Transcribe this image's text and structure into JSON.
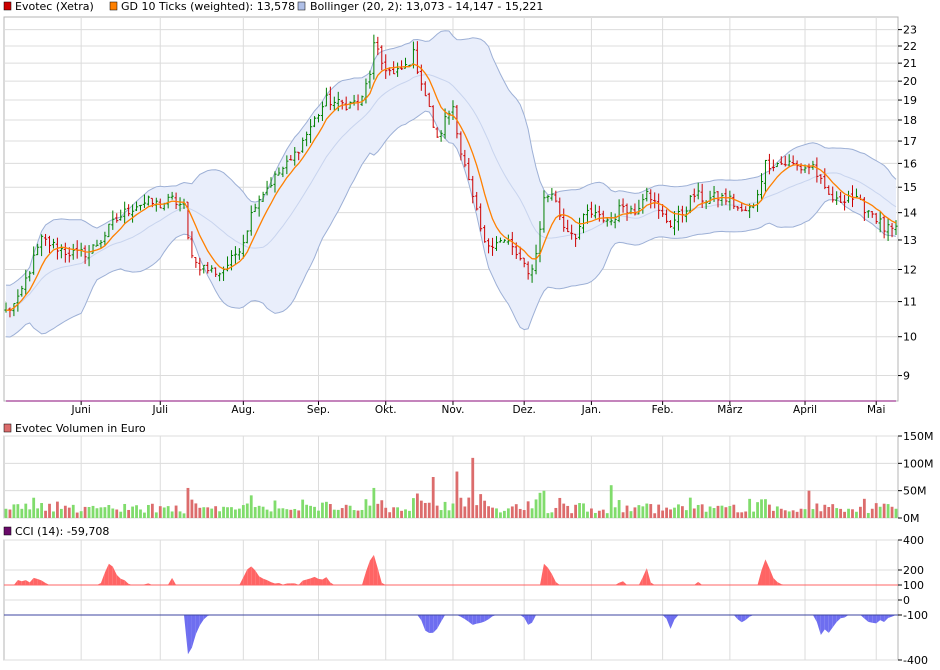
{
  "colors": {
    "price_up": "#008000",
    "price_down": "#cc0000",
    "moving_average": "#ff8000",
    "bollinger_line": "#9db0d6",
    "bollinger_fill": "#e9eefb",
    "bollinger_mid": "#c8d4ee",
    "volume_up": "#80dc6c",
    "volume_down": "#dc6c6c",
    "cci_line": "#8a0a7a",
    "cci_upper_line": "#ff6464",
    "cci_lower_line": "#3c46a0",
    "cci_fill_high": "#ff6464",
    "cci_fill_low": "#6e6ef0",
    "grid": "#dcdcdc",
    "axis": "#000000",
    "minus100_label": "#3c46c8",
    "plus100_label": "#e03232"
  },
  "legend": {
    "price": "Evotec (Xetra)",
    "ma": "GD 10 Ticks (weighted): 13,578",
    "bollinger": "Bollinger (20, 2): 13,073 - 14,147 - 15,221",
    "volume": "Evotec Volumen in Euro",
    "cci": "CCI (14): -59,708"
  },
  "chart_data": [
    {
      "type": "ohlc",
      "title": "",
      "series_names": [
        "Evotec (Xetra)",
        "GD 10 Ticks (weighted)",
        "Bollinger (20, 2)"
      ],
      "x_tick_labels": [
        "Juni",
        "Juli",
        "Aug.",
        "Sep.",
        "Okt.",
        "Nov.",
        "Dez.",
        "Jan.",
        "Feb.",
        "März",
        "April",
        "Mai"
      ],
      "y_tick_labels": [
        "9",
        "10",
        "11",
        "12",
        "13",
        "14",
        "15",
        "16",
        "17",
        "18",
        "19",
        "20",
        "21",
        "22",
        "23"
      ],
      "yscale": "log",
      "ylim": [
        8.4,
        23.8
      ],
      "grid": true,
      "legend_position": "top-left",
      "anchors": [
        [
          0,
          10.7
        ],
        [
          3,
          11.0
        ],
        [
          6,
          12.0
        ],
        [
          9,
          13.0
        ],
        [
          12,
          12.8
        ],
        [
          15,
          12.6
        ],
        [
          18,
          12.5
        ],
        [
          21,
          12.6
        ],
        [
          24,
          13.0
        ],
        [
          27,
          13.6
        ],
        [
          30,
          14.0
        ],
        [
          33,
          14.3
        ],
        [
          36,
          14.4
        ],
        [
          39,
          14.3
        ],
        [
          42,
          14.5
        ],
        [
          45,
          14.2
        ],
        [
          46,
          13.0
        ],
        [
          48,
          12.2
        ],
        [
          51,
          12.0
        ],
        [
          54,
          11.9
        ],
        [
          57,
          12.3
        ],
        [
          60,
          13.0
        ],
        [
          63,
          14.4
        ],
        [
          66,
          15.0
        ],
        [
          69,
          15.6
        ],
        [
          72,
          16.1
        ],
        [
          75,
          17.0
        ],
        [
          78,
          18.0
        ],
        [
          81,
          19.0
        ],
        [
          84,
          18.8
        ],
        [
          87,
          18.8
        ],
        [
          90,
          19.0
        ],
        [
          92,
          20.5
        ],
        [
          93,
          22.0
        ],
        [
          95,
          21.0
        ],
        [
          98,
          20.3
        ],
        [
          101,
          20.8
        ],
        [
          103,
          21.5
        ],
        [
          105,
          20.0
        ],
        [
          107,
          18.5
        ],
        [
          109,
          17.0
        ],
        [
          111,
          18.0
        ],
        [
          113,
          18.7
        ],
        [
          115,
          16.5
        ],
        [
          118,
          14.5
        ],
        [
          121,
          12.8
        ],
        [
          124,
          13.0
        ],
        [
          127,
          12.9
        ],
        [
          130,
          12.3
        ],
        [
          132,
          11.8
        ],
        [
          134,
          12.5
        ],
        [
          136,
          14.5
        ],
        [
          138,
          14.8
        ],
        [
          141,
          13.5
        ],
        [
          144,
          13.2
        ],
        [
          147,
          14.0
        ],
        [
          150,
          13.8
        ],
        [
          153,
          13.7
        ],
        [
          156,
          14.3
        ],
        [
          159,
          14.0
        ],
        [
          162,
          15.0
        ],
        [
          165,
          14.0
        ],
        [
          168,
          13.6
        ],
        [
          171,
          14.0
        ],
        [
          174,
          14.7
        ],
        [
          177,
          14.5
        ],
        [
          180,
          14.6
        ],
        [
          183,
          14.5
        ],
        [
          186,
          14.0
        ],
        [
          189,
          14.2
        ],
        [
          192,
          16.0
        ],
        [
          195,
          16.0
        ],
        [
          198,
          16.0
        ],
        [
          201,
          15.8
        ],
        [
          204,
          15.9
        ],
        [
          207,
          14.8
        ],
        [
          210,
          14.4
        ],
        [
          213,
          14.7
        ],
        [
          216,
          14.3
        ],
        [
          219,
          14.0
        ],
        [
          222,
          13.4
        ],
        [
          225,
          13.3
        ]
      ],
      "ma_last": 13.578,
      "bollinger_last": {
        "lower": 13.073,
        "middle": 14.147,
        "upper": 15.221
      }
    },
    {
      "type": "bar",
      "title": "Evotec Volumen in Euro",
      "y_tick_labels": [
        "0M",
        "50M",
        "100M",
        "150M"
      ],
      "ylim": [
        0,
        150
      ],
      "peak_values_m": [
        30,
        32,
        55,
        75,
        85,
        110,
        60,
        35,
        50
      ],
      "grid": true
    },
    {
      "type": "line",
      "title": "CCI (14)",
      "y_tick_labels": [
        "-400",
        "-100",
        "0",
        "100",
        "200",
        "400"
      ],
      "ylim": [
        -400,
        400
      ],
      "reference_lines": [
        100,
        -100
      ],
      "last_value": -59.708,
      "grid": true
    }
  ]
}
